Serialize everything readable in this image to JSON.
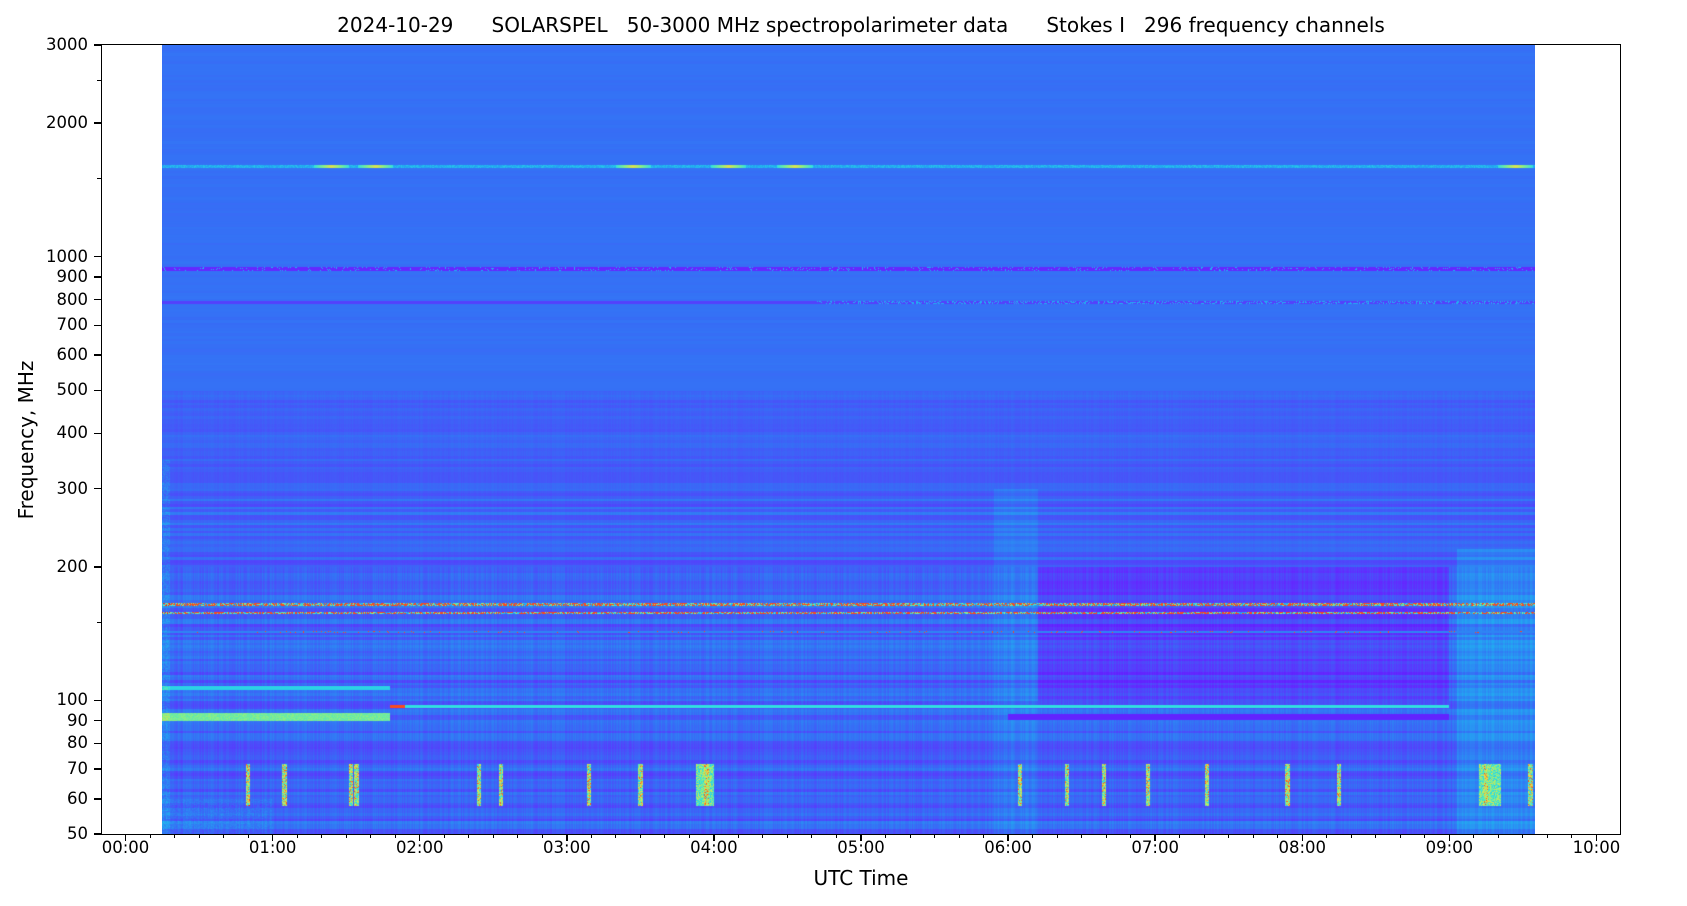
{
  "chart_data": {
    "type": "heatmap",
    "title": "2024-10-29      SOLARSPEL   50-3000 MHz spectropolarimeter data      Stokes I   296 frequency channels",
    "xlabel": "UTC Time",
    "ylabel": "Frequency, MHz",
    "xlim_hours": [
      -0.16,
      10.16
    ],
    "ylim": [
      50,
      3000
    ],
    "yscale": "log",
    "data_time_range_hours": [
      0.25,
      9.585
    ],
    "x_ticks": [
      "00:00",
      "01:00",
      "02:00",
      "03:00",
      "04:00",
      "05:00",
      "06:00",
      "07:00",
      "08:00",
      "09:00",
      "10:00"
    ],
    "y_ticks": [
      50,
      60,
      70,
      80,
      90,
      100,
      200,
      300,
      400,
      500,
      600,
      700,
      800,
      900,
      1000,
      2000,
      3000
    ],
    "y_minor_ticks": [
      150,
      1500,
      2500
    ],
    "colormap": "rainbow",
    "background_level": 0.3,
    "features": [
      {
        "name": "band 1600 MHz",
        "freq": 1600,
        "level": 0.45,
        "bursts_hours": [
          1.4,
          1.7,
          3.45,
          4.1,
          4.55,
          9.45
        ]
      },
      {
        "name": "band 940 MHz",
        "freq": 940,
        "level": 0.15
      },
      {
        "name": "band 790 MHz",
        "freq": 790,
        "level": 0.2
      },
      {
        "name": "interference 165 MHz",
        "freq": 165,
        "level": 0.95
      },
      {
        "name": "interference 158 MHz",
        "freq": 158,
        "level": 0.95
      },
      {
        "name": "interference 143 MHz",
        "freq": 143,
        "level": 0.6
      },
      {
        "name": "band 97 MHz",
        "freq": 97,
        "level": 0.65,
        "time_range_hours": [
          1.8,
          9.0
        ]
      },
      {
        "name": "band 92 MHz",
        "freq": 92,
        "level": 0.7,
        "time_range_hours": [
          0.25,
          1.8
        ]
      },
      {
        "name": "bursts 60-70 MHz",
        "freq_range": [
          60,
          70
        ],
        "times_hours": [
          0.83,
          1.08,
          1.53,
          1.57,
          2.4,
          2.55,
          3.15,
          3.5,
          3.95,
          6.08,
          6.4,
          6.65,
          6.95,
          7.35,
          7.9,
          8.25,
          9.25,
          9.55
        ]
      }
    ],
    "colors": {
      "background": "#3570f5",
      "axis": "#000000"
    }
  }
}
